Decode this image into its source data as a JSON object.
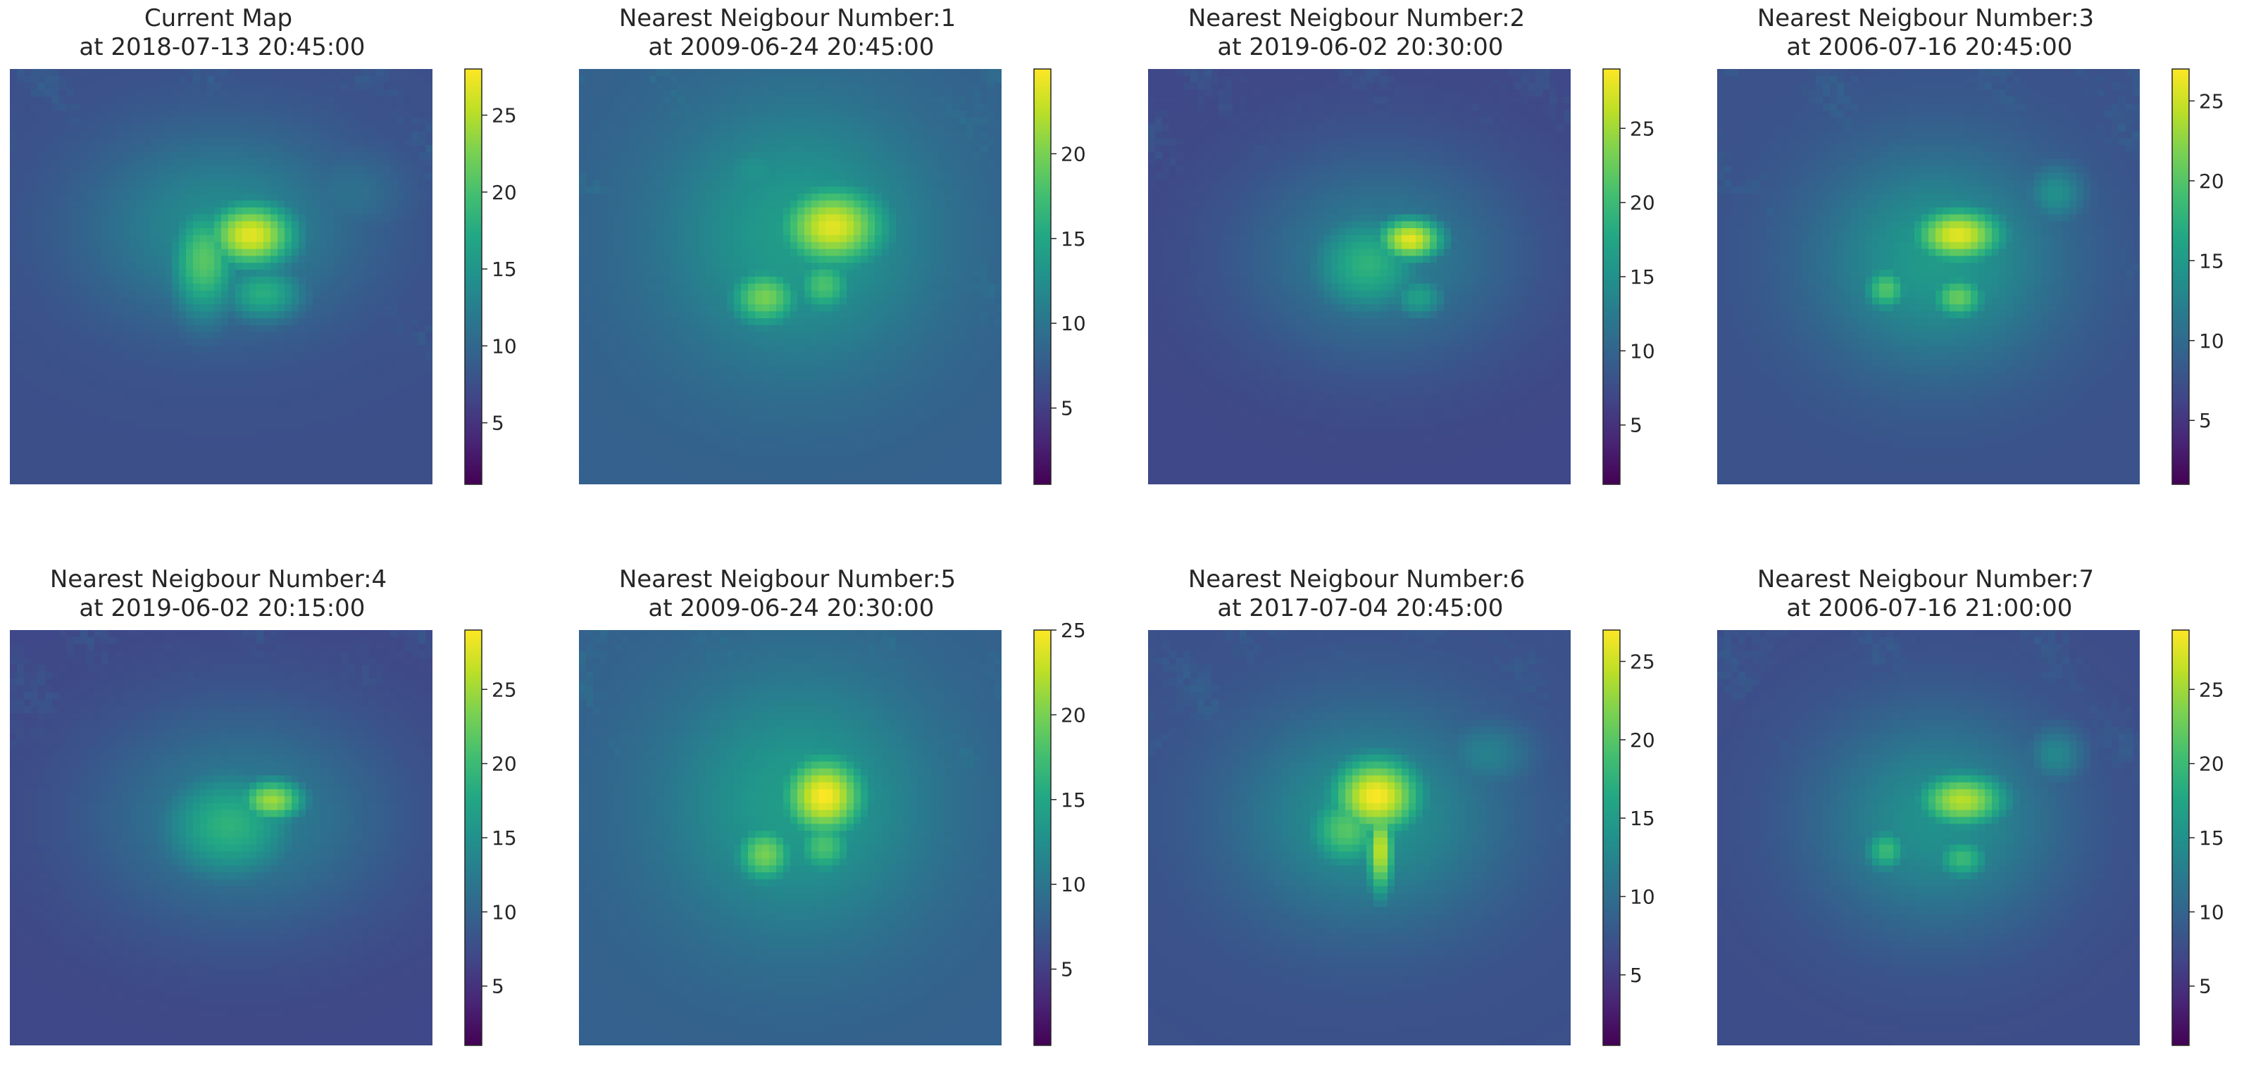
{
  "figure": {
    "colormap": "viridis",
    "axes_visible": false
  },
  "chart_data": [
    {
      "type": "heatmap",
      "title": "Current Map\n at 2018-07-13 20:45:00",
      "colorbar": {
        "range": [
          1,
          28
        ],
        "ticks": [
          5,
          10,
          15,
          20,
          25
        ],
        "tick_labels": [
          "5",
          "10",
          "15",
          "20",
          "25"
        ]
      },
      "features": {
        "background": 7.5,
        "south_low": 1.5,
        "blobs": [
          {
            "x": 0.57,
            "y": 0.4,
            "rx": 0.08,
            "ry": 0.06,
            "v": 27
          },
          {
            "x": 0.46,
            "y": 0.46,
            "rx": 0.06,
            "ry": 0.1,
            "v": 21
          },
          {
            "x": 0.6,
            "y": 0.54,
            "rx": 0.07,
            "ry": 0.05,
            "v": 18
          },
          {
            "x": 0.5,
            "y": 0.38,
            "rx": 0.22,
            "ry": 0.16,
            "v": 14
          },
          {
            "x": 0.8,
            "y": 0.3,
            "rx": 0.1,
            "ry": 0.08,
            "v": 11
          }
        ]
      }
    },
    {
      "type": "heatmap",
      "title": "Nearest Neigbour Number:1\n at 2009-06-24 20:45:00",
      "colorbar": {
        "range": [
          0.5,
          25
        ],
        "ticks": [
          5,
          10,
          15,
          20
        ],
        "tick_labels": [
          "5",
          "10",
          "15",
          "20"
        ]
      },
      "features": {
        "background": 8,
        "south_low": 2,
        "blobs": [
          {
            "x": 0.6,
            "y": 0.38,
            "rx": 0.09,
            "ry": 0.07,
            "v": 24
          },
          {
            "x": 0.44,
            "y": 0.55,
            "rx": 0.06,
            "ry": 0.05,
            "v": 20
          },
          {
            "x": 0.58,
            "y": 0.52,
            "rx": 0.05,
            "ry": 0.05,
            "v": 18
          },
          {
            "x": 0.52,
            "y": 0.4,
            "rx": 0.22,
            "ry": 0.22,
            "v": 14
          },
          {
            "x": 0.42,
            "y": 0.25,
            "rx": 0.07,
            "ry": 0.06,
            "v": 13
          }
        ]
      }
    },
    {
      "type": "heatmap",
      "title": "Nearest Neigbour Number:2\n at 2019-06-02 20:30:00",
      "colorbar": {
        "range": [
          1,
          29
        ],
        "ticks": [
          5,
          10,
          15,
          20,
          25
        ],
        "tick_labels": [
          "5",
          "10",
          "15",
          "20",
          "25"
        ]
      },
      "features": {
        "background": 7,
        "south_low": 1.5,
        "blobs": [
          {
            "x": 0.62,
            "y": 0.41,
            "rx": 0.06,
            "ry": 0.04,
            "v": 28
          },
          {
            "x": 0.52,
            "y": 0.47,
            "rx": 0.1,
            "ry": 0.09,
            "v": 19
          },
          {
            "x": 0.64,
            "y": 0.55,
            "rx": 0.05,
            "ry": 0.04,
            "v": 17
          },
          {
            "x": 0.55,
            "y": 0.45,
            "rx": 0.22,
            "ry": 0.17,
            "v": 13
          }
        ]
      }
    },
    {
      "type": "heatmap",
      "title": "Nearest Neigbour Number:3\n at 2006-07-16 20:45:00",
      "colorbar": {
        "range": [
          1,
          27
        ],
        "ticks": [
          5,
          10,
          15,
          20,
          25
        ],
        "tick_labels": [
          "5",
          "10",
          "15",
          "20",
          "25"
        ]
      },
      "features": {
        "background": 7.5,
        "south_low": 1.5,
        "blobs": [
          {
            "x": 0.57,
            "y": 0.4,
            "rx": 0.08,
            "ry": 0.05,
            "v": 26
          },
          {
            "x": 0.4,
            "y": 0.53,
            "rx": 0.04,
            "ry": 0.04,
            "v": 20
          },
          {
            "x": 0.57,
            "y": 0.55,
            "rx": 0.05,
            "ry": 0.04,
            "v": 21
          },
          {
            "x": 0.52,
            "y": 0.46,
            "rx": 0.2,
            "ry": 0.18,
            "v": 15
          },
          {
            "x": 0.8,
            "y": 0.3,
            "rx": 0.05,
            "ry": 0.05,
            "v": 14
          }
        ]
      }
    },
    {
      "type": "heatmap",
      "title": "Nearest Neigbour Number:4\n at 2019-06-02 20:15:00",
      "colorbar": {
        "range": [
          1,
          29
        ],
        "ticks": [
          5,
          10,
          15,
          20,
          25
        ],
        "tick_labels": [
          "5",
          "10",
          "15",
          "20",
          "25"
        ]
      },
      "features": {
        "background": 7,
        "south_low": 1.5,
        "blobs": [
          {
            "x": 0.62,
            "y": 0.41,
            "rx": 0.06,
            "ry": 0.04,
            "v": 25
          },
          {
            "x": 0.52,
            "y": 0.47,
            "rx": 0.12,
            "ry": 0.1,
            "v": 19
          },
          {
            "x": 0.55,
            "y": 0.45,
            "rx": 0.24,
            "ry": 0.18,
            "v": 13
          }
        ]
      }
    },
    {
      "type": "heatmap",
      "title": "Nearest Neigbour Number:5\n at 2009-06-24 20:30:00",
      "colorbar": {
        "range": [
          0.5,
          25
        ],
        "ticks": [
          5,
          10,
          15,
          20,
          25
        ],
        "tick_labels": [
          "5",
          "10",
          "15",
          "20",
          "25"
        ]
      },
      "features": {
        "background": 8,
        "south_low": 2,
        "blobs": [
          {
            "x": 0.58,
            "y": 0.4,
            "rx": 0.07,
            "ry": 0.07,
            "v": 25
          },
          {
            "x": 0.44,
            "y": 0.54,
            "rx": 0.05,
            "ry": 0.05,
            "v": 20
          },
          {
            "x": 0.58,
            "y": 0.52,
            "rx": 0.05,
            "ry": 0.05,
            "v": 18
          },
          {
            "x": 0.52,
            "y": 0.42,
            "rx": 0.22,
            "ry": 0.22,
            "v": 14
          },
          {
            "x": 0.4,
            "y": 0.25,
            "rx": 0.07,
            "ry": 0.05,
            "v": 12
          }
        ]
      }
    },
    {
      "type": "heatmap",
      "title": "Nearest Neigbour Number:6\n at 2017-07-04 20:45:00",
      "colorbar": {
        "range": [
          0.5,
          27
        ],
        "ticks": [
          5,
          10,
          15,
          20,
          25
        ],
        "tick_labels": [
          "5",
          "10",
          "15",
          "20",
          "25"
        ]
      },
      "features": {
        "background": 7,
        "south_low": 1.5,
        "blobs": [
          {
            "x": 0.54,
            "y": 0.4,
            "rx": 0.08,
            "ry": 0.07,
            "v": 27
          },
          {
            "x": 0.55,
            "y": 0.53,
            "rx": 0.025,
            "ry": 0.08,
            "v": 25
          },
          {
            "x": 0.47,
            "y": 0.48,
            "rx": 0.07,
            "ry": 0.07,
            "v": 20
          },
          {
            "x": 0.52,
            "y": 0.45,
            "rx": 0.22,
            "ry": 0.18,
            "v": 14
          },
          {
            "x": 0.8,
            "y": 0.3,
            "rx": 0.08,
            "ry": 0.06,
            "v": 12
          }
        ]
      }
    },
    {
      "type": "heatmap",
      "title": "Nearest Neigbour Number:7\n at 2006-07-16 21:00:00",
      "colorbar": {
        "range": [
          1,
          29
        ],
        "ticks": [
          5,
          10,
          15,
          20,
          25
        ],
        "tick_labels": [
          "5",
          "10",
          "15",
          "20",
          "25"
        ]
      },
      "features": {
        "background": 7.5,
        "south_low": 1.5,
        "blobs": [
          {
            "x": 0.58,
            "y": 0.41,
            "rx": 0.08,
            "ry": 0.05,
            "v": 26
          },
          {
            "x": 0.4,
            "y": 0.53,
            "rx": 0.04,
            "ry": 0.04,
            "v": 20
          },
          {
            "x": 0.58,
            "y": 0.55,
            "rx": 0.05,
            "ry": 0.04,
            "v": 20
          },
          {
            "x": 0.52,
            "y": 0.46,
            "rx": 0.2,
            "ry": 0.18,
            "v": 15
          },
          {
            "x": 0.8,
            "y": 0.3,
            "rx": 0.05,
            "ry": 0.05,
            "v": 14
          }
        ]
      }
    }
  ]
}
